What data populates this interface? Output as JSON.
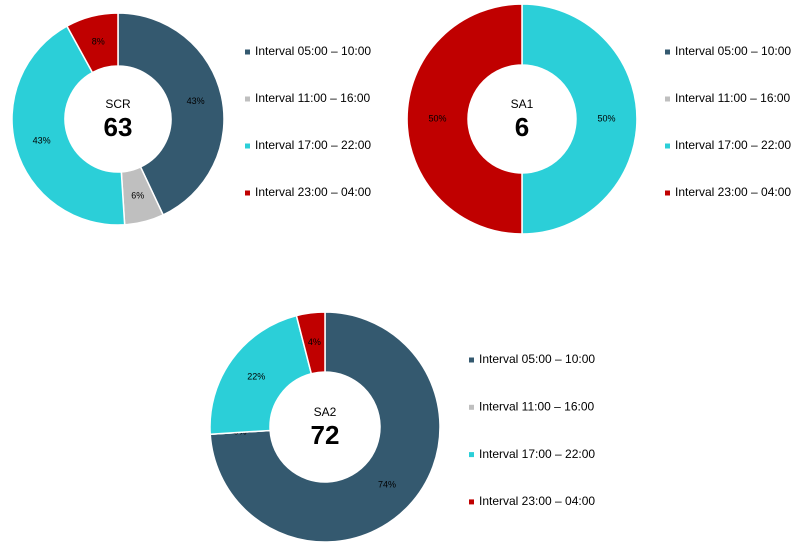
{
  "chart_data": [
    {
      "type": "donut",
      "title": "SCR",
      "total": 63,
      "categories": [
        "Interval 05:00 – 10:00",
        "Interval 11:00 – 16:00",
        "Interval 17:00 – 22:00",
        "Interval 23:00 – 04:00"
      ],
      "series": [
        {
          "name": "SCR",
          "values": [
            43,
            6,
            43,
            8
          ],
          "value_labels": [
            "43%",
            "6%",
            "43%",
            "8%"
          ]
        }
      ],
      "colors": [
        "#34596f",
        "#bfbfbf",
        "#2bcfd8",
        "#c00000"
      ],
      "legend": "right"
    },
    {
      "type": "donut",
      "title": "SA1",
      "total": 6,
      "categories": [
        "Interval 05:00 – 10:00",
        "Interval 11:00 – 16:00",
        "Interval 17:00 – 22:00",
        "Interval 23:00 – 04:00"
      ],
      "series": [
        {
          "name": "SA1",
          "values": [
            0,
            0,
            50,
            50
          ],
          "value_labels": [
            "0%",
            "0%",
            "50%",
            "50%"
          ]
        }
      ],
      "colors": [
        "#34596f",
        "#bfbfbf",
        "#2bcfd8",
        "#c00000"
      ],
      "legend": "right"
    },
    {
      "type": "donut",
      "title": "SA2",
      "total": 72,
      "categories": [
        "Interval 05:00 – 10:00",
        "Interval 11:00 – 16:00",
        "Interval 17:00 – 22:00",
        "Interval 23:00 – 04:00"
      ],
      "series": [
        {
          "name": "SA2",
          "values": [
            74,
            0,
            22,
            4
          ],
          "value_labels": [
            "74%",
            "0%",
            "22%",
            "4%"
          ]
        }
      ],
      "colors": [
        "#34596f",
        "#bfbfbf",
        "#2bcfd8",
        "#c00000"
      ],
      "legend": "right"
    }
  ]
}
